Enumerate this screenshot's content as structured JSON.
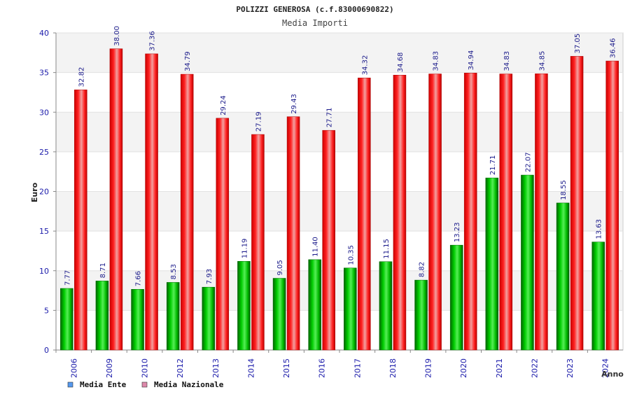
{
  "chart_data": {
    "type": "bar",
    "title": "POLIZZI GENEROSA (c.f.83000690822)",
    "subtitle": "Media Importi",
    "xlabel": "Anno",
    "ylabel": "Euro",
    "ylim": [
      0,
      40
    ],
    "yticks": [
      "0",
      "5",
      "10",
      "15",
      "20",
      "25",
      "30",
      "35",
      "40"
    ],
    "grid": true,
    "legend_position": "bottom-left",
    "categories": [
      "2006",
      "2009",
      "2010",
      "2012",
      "2013",
      "2014",
      "2015",
      "2016",
      "2017",
      "2018",
      "2019",
      "2020",
      "2021",
      "2022",
      "2023",
      "2024"
    ],
    "series": [
      {
        "name": "Media Ente",
        "color": "#00aa00",
        "legend_color": "#5599ee",
        "values": [
          7.77,
          8.71,
          7.66,
          8.53,
          7.93,
          11.19,
          9.05,
          11.4,
          10.35,
          11.15,
          8.82,
          13.23,
          21.71,
          22.07,
          18.55,
          13.63
        ],
        "labels": [
          "7.77",
          "8.71",
          "7.66",
          "8.53",
          "7.93",
          "11.19",
          "9.05",
          "11.40",
          "10.35",
          "11.15",
          "8.82",
          "13.23",
          "21.71",
          "22.07",
          "18.55",
          "13.63"
        ]
      },
      {
        "name": "Media Nazionale",
        "color": "#ee1111",
        "legend_color": "#dd88aa",
        "values": [
          32.82,
          38.0,
          37.36,
          34.79,
          29.24,
          27.19,
          29.43,
          27.71,
          34.32,
          34.68,
          34.83,
          34.94,
          34.83,
          34.85,
          37.05,
          36.46
        ],
        "labels": [
          "32.82",
          "38.00",
          "37.36",
          "34.79",
          "29.24",
          "27.19",
          "29.43",
          "27.71",
          "34.32",
          "34.68",
          "34.83",
          "34.94",
          "34.83",
          "34.85",
          "37.05",
          "36.46"
        ]
      }
    ]
  }
}
